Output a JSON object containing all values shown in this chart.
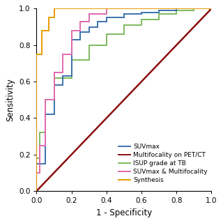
{
  "title": "",
  "xlabel": "1 - Specificity",
  "ylabel": "Sensitivity",
  "xlim": [
    0.0,
    1.0
  ],
  "ylim": [
    0.0,
    1.0
  ],
  "xticks": [
    0.0,
    0.2,
    0.4,
    0.6,
    0.8,
    1.0
  ],
  "yticks": [
    0.0,
    0.2,
    0.4,
    0.6,
    0.8,
    1.0
  ],
  "background_color": "#ffffff",
  "diagonal_color": "#bebebe",
  "curves": {
    "SUVmax": {
      "color": "#3b72ae",
      "x": [
        0.0,
        0.0,
        0.05,
        0.05,
        0.1,
        0.1,
        0.15,
        0.15,
        0.2,
        0.2,
        0.25,
        0.25,
        0.3,
        0.3,
        0.35,
        0.35,
        0.4,
        0.4,
        0.5,
        0.5,
        0.6,
        0.6,
        0.7,
        0.7,
        0.8,
        0.8,
        0.9,
        0.9,
        1.0
      ],
      "y": [
        0.0,
        0.15,
        0.15,
        0.42,
        0.42,
        0.58,
        0.58,
        0.63,
        0.63,
        0.83,
        0.83,
        0.87,
        0.87,
        0.9,
        0.9,
        0.93,
        0.93,
        0.95,
        0.95,
        0.97,
        0.97,
        0.98,
        0.98,
        0.99,
        0.99,
        1.0,
        1.0,
        1.0,
        1.0
      ]
    },
    "Multifocality": {
      "color": "#8B1010",
      "x": [
        0.0,
        0.05,
        0.1,
        0.15,
        0.2,
        0.25,
        0.3,
        0.35,
        0.4,
        0.45,
        0.5,
        0.55,
        0.6,
        0.65,
        0.7,
        0.75,
        0.8,
        0.85,
        0.9,
        0.95,
        1.0
      ],
      "y": [
        0.0,
        0.05,
        0.1,
        0.15,
        0.2,
        0.25,
        0.3,
        0.35,
        0.4,
        0.45,
        0.5,
        0.55,
        0.6,
        0.65,
        0.7,
        0.75,
        0.8,
        0.85,
        0.9,
        0.95,
        1.0
      ]
    },
    "ISUP": {
      "color": "#7dba5e",
      "x": [
        0.0,
        0.0,
        0.02,
        0.02,
        0.05,
        0.05,
        0.1,
        0.1,
        0.2,
        0.2,
        0.3,
        0.3,
        0.4,
        0.4,
        0.5,
        0.5,
        0.6,
        0.6,
        0.7,
        0.7,
        0.8,
        0.8,
        0.9,
        0.9,
        1.0
      ],
      "y": [
        0.0,
        0.18,
        0.18,
        0.32,
        0.32,
        0.5,
        0.5,
        0.62,
        0.62,
        0.72,
        0.72,
        0.8,
        0.8,
        0.86,
        0.86,
        0.91,
        0.91,
        0.94,
        0.94,
        0.97,
        0.97,
        0.99,
        0.99,
        1.0,
        1.0
      ]
    },
    "SUVmax_Multi": {
      "color": "#e06aad",
      "x": [
        0.0,
        0.0,
        0.02,
        0.02,
        0.05,
        0.05,
        0.1,
        0.1,
        0.15,
        0.15,
        0.2,
        0.2,
        0.25,
        0.25,
        0.3,
        0.3,
        0.4,
        0.4,
        1.0
      ],
      "y": [
        0.0,
        0.1,
        0.1,
        0.25,
        0.25,
        0.5,
        0.5,
        0.65,
        0.65,
        0.75,
        0.75,
        0.88,
        0.88,
        0.93,
        0.93,
        0.97,
        0.97,
        1.0,
        1.0
      ]
    },
    "Synthesis": {
      "color": "#e89c00",
      "x": [
        0.0,
        0.0,
        0.03,
        0.03,
        0.07,
        0.07,
        0.1,
        0.1,
        0.2,
        0.2,
        1.0
      ],
      "y": [
        0.0,
        0.75,
        0.75,
        0.88,
        0.88,
        0.95,
        0.95,
        1.0,
        1.0,
        1.0,
        1.0
      ]
    }
  },
  "legend": [
    {
      "label": "SUVmax",
      "color": "#3b72ae"
    },
    {
      "label": "Multifocality on PET/CT",
      "color": "#8B1010"
    },
    {
      "label": "ISUP grade at TB",
      "color": "#7dba5e"
    },
    {
      "label": "SUVmax & Multifocality",
      "color": "#e06aad"
    },
    {
      "label": "Synthesis",
      "color": "#e89c00"
    }
  ],
  "fontsize": 8.5,
  "linewidth": 1.4
}
